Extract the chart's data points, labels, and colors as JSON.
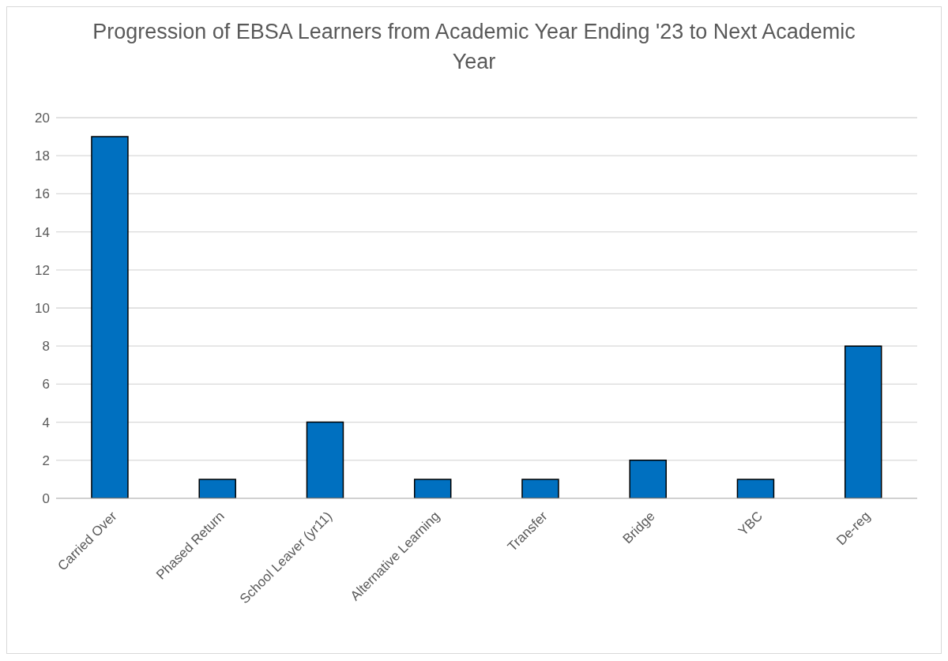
{
  "chart_data": {
    "type": "bar",
    "title": "Progression of EBSA Learners from Academic Year Ending '23 to Next Academic Year",
    "categories": [
      "Carried Over",
      "Phased Return",
      "School Leaver (yr11)",
      "Alternative Learning",
      "Transfer",
      "Bridge",
      "YBC",
      "De-reg"
    ],
    "values": [
      19,
      1,
      4,
      1,
      1,
      2,
      1,
      8
    ],
    "color": "#0070c0",
    "ylim": [
      0,
      20
    ],
    "yticks": [
      0,
      2,
      4,
      6,
      8,
      10,
      12,
      14,
      16,
      18,
      20
    ],
    "grid": "y"
  }
}
